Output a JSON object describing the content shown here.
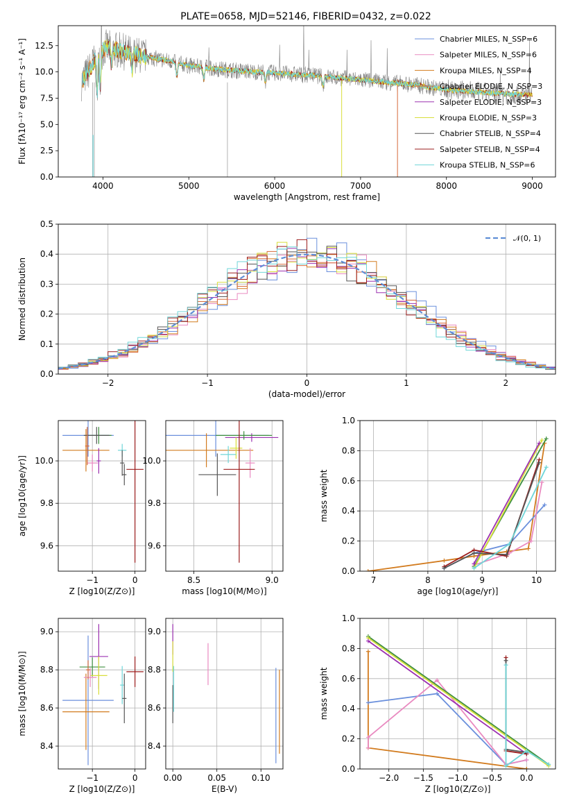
{
  "figure": {
    "title": "PLATE=0658, MJD=52146, FIBERID=0432, z=0.022"
  },
  "colors": {
    "Chabrier MILES": "#6a8fdc",
    "Salpeter MILES": "#e98ac0",
    "Kroupa MILES": "#d27b1e",
    "Chabrier ELODIE": "#d66a3a",
    "Salpeter ELODIE": "#9b30b0",
    "Kroupa ELODIE": "#d8de3a",
    "Chabrier STELIB": "#555555",
    "Salpeter STELIB": "#9b1c1c",
    "Kroupa STELIB": "#6fd6d8",
    "data": "#808080",
    "extra_green": "#3f8f3f"
  },
  "chart_data": [
    {
      "id": "spectrum",
      "type": "line",
      "title": "PLATE=0658, MJD=52146, FIBERID=0432, z=0.022",
      "xlabel": "wavelength [Angstrom, rest frame]",
      "ylabel": "Flux [fλ10⁻¹⁷ erg cm⁻² s⁻¹ A⁻¹]",
      "xlim": [
        3480,
        9270
      ],
      "ylim": [
        0,
        14.4
      ],
      "xticks": [
        "4000",
        "5000",
        "6000",
        "7000",
        "8000",
        "9000"
      ],
      "yticks": [
        "0.0",
        "2.5",
        "5.0",
        "7.5",
        "10.0",
        "12.5"
      ],
      "legend": "upper right",
      "legend_entries": [
        "Chabrier MILES, N_SSP=6",
        "Salpeter MILES, N_SSP=6",
        "Kroupa MILES, N_SSP=4",
        "Chabrier ELODIE, N_SSP=3",
        "Salpeter ELODIE, N_SSP=3",
        "Kroupa ELODIE, N_SSP=3",
        "Chabrier STELIB, N_SSP=4",
        "Salpeter STELIB, N_SSP=4",
        "Kroupa STELIB, N_SSP=6"
      ],
      "continuum": {
        "x": [
          3750,
          3850,
          3950,
          4050,
          4200,
          4400,
          4600,
          4800,
          5000,
          5300,
          5600,
          6000,
          6400,
          6800,
          7200,
          7600,
          8000,
          8500,
          9000
        ],
        "y": [
          10.5,
          11.2,
          12.0,
          12.3,
          12.0,
          11.6,
          11.3,
          11.0,
          10.6,
          10.3,
          10.1,
          9.9,
          9.7,
          9.4,
          9.1,
          8.8,
          8.3,
          8.0,
          7.8
        ]
      }
    },
    {
      "id": "residuals",
      "type": "line",
      "xlabel": "(data-model)/error",
      "ylabel": "Normed distribution",
      "xlim": [
        -2.5,
        2.5
      ],
      "ylim": [
        0,
        0.5
      ],
      "xticks": [
        "−2",
        "−1",
        "0",
        "1",
        "2"
      ],
      "yticks": [
        "0.0",
        "0.1",
        "0.2",
        "0.3",
        "0.4",
        "0.5"
      ],
      "grid": true,
      "legend": "upper right",
      "legend_entries": [
        "𝒩(0, 1)"
      ],
      "bin_width": 0.1
    },
    {
      "id": "age-vs-Z",
      "type": "scatter",
      "xlabel": "Z [log10(Z/Z⊙)]",
      "ylabel": "age  [log10(age/yr)]",
      "xlim": [
        -1.8,
        0.25
      ],
      "ylim": [
        9.48,
        10.19
      ],
      "xticks": [
        "−1",
        "0"
      ],
      "yticks": [
        "9.6",
        "9.8",
        "10.0"
      ],
      "grid": true,
      "points": [
        {
          "model": "Chabrier MILES",
          "x": -1.1,
          "y": 10.12,
          "xerr": 0.6,
          "yerr": 0.1
        },
        {
          "model": "Kroupa MILES",
          "x": -1.15,
          "y": 10.05,
          "xerr": 0.55,
          "yerr": 0.1
        },
        {
          "model": "extra_green",
          "x": -0.85,
          "y": 10.12,
          "xerr": 0.3,
          "yerr": 0.04
        },
        {
          "model": "Chabrier STELIB",
          "x": -0.9,
          "y": 10.12,
          "xerr": 0.3,
          "yerr": 0.04
        },
        {
          "model": "Salpeter MILES",
          "x": -1.0,
          "y": 9.99,
          "xerr": 0.13,
          "yerr": 0.04
        },
        {
          "model": "Salpeter ELODIE",
          "x": -0.85,
          "y": 10.0,
          "xerr": 0.05,
          "yerr": 0.06
        },
        {
          "model": "Chabrier ELODIE",
          "x": -1.12,
          "y": 10.07,
          "xerr": 0.05,
          "yerr": 0.09
        },
        {
          "model": "Kroupa STELIB",
          "x": -0.3,
          "y": 10.05,
          "xerr": 0.1,
          "yerr": 0.03
        },
        {
          "model": "Chabrier STELIB",
          "x": -0.3,
          "y": 9.99,
          "xerr": 0.05,
          "yerr": 0.06
        },
        {
          "model": "Salpeter STELIB",
          "x": 0.0,
          "y": 9.96,
          "xerr": 0.2,
          "yerr": 0.44
        },
        {
          "model": "Chabrier STELIB",
          "x": -0.25,
          "y": 9.935,
          "xerr": 0.05,
          "yerr": 0.05
        }
      ]
    },
    {
      "id": "age-vs-mass",
      "type": "scatter",
      "xlabel": "mass [log10(M/M⊙)]",
      "ylabel": "",
      "xlim": [
        8.32,
        9.07
      ],
      "ylim": [
        9.48,
        10.19
      ],
      "xticks": [
        "8.5",
        "9.0"
      ],
      "yticks": [
        "9.6",
        "9.8",
        "10.0"
      ],
      "grid": true,
      "points": [
        {
          "model": "Chabrier MILES",
          "x": 8.64,
          "y": 10.12,
          "xerr": 0.34,
          "yerr": 0.1
        },
        {
          "model": "Salpeter ELODIE",
          "x": 8.87,
          "y": 10.11,
          "xerr": 0.17,
          "yerr": 0.02
        },
        {
          "model": "extra_green",
          "x": 8.82,
          "y": 10.12,
          "xerr": 0.18,
          "yerr": 0.02
        },
        {
          "model": "Kroupa MILES",
          "x": 8.58,
          "y": 10.05,
          "xerr": 0.3,
          "yerr": 0.08
        },
        {
          "model": "Kroupa ELODIE",
          "x": 8.77,
          "y": 10.06,
          "xerr": 0.04,
          "yerr": 0.05
        },
        {
          "model": "Salpeter MILES",
          "x": 8.86,
          "y": 9.99,
          "xerr": 0.03,
          "yerr": 0.07
        },
        {
          "model": "Chabrier STELIB",
          "x": 8.65,
          "y": 9.935,
          "xerr": 0.12,
          "yerr": 0.1
        },
        {
          "model": "Salpeter STELIB",
          "x": 8.79,
          "y": 9.96,
          "xerr": 0.1,
          "yerr": 0.44
        },
        {
          "model": "Kroupa STELIB",
          "x": 8.72,
          "y": 10.03,
          "xerr": 0.05,
          "yerr": 0.04
        }
      ]
    },
    {
      "id": "massweight-vs-age",
      "type": "line",
      "xlabel": "age  [log10(age/yr)]",
      "ylabel": "mass weight",
      "xlim": [
        6.75,
        10.35
      ],
      "ylim": [
        0,
        1.0
      ],
      "xticks": [
        "7",
        "8",
        "9",
        "10"
      ],
      "yticks": [
        "0.0",
        "0.2",
        "0.4",
        "0.6",
        "0.8",
        "1.0"
      ],
      "grid": true,
      "series": [
        {
          "model": "Kroupa MILES",
          "x": [
            6.9,
            8.3,
            8.85,
            9.45,
            9.85,
            10.15
          ],
          "y": [
            0.0,
            0.07,
            0.1,
            0.13,
            0.15,
            0.85
          ]
        },
        {
          "model": "Chabrier MILES",
          "x": [
            8.3,
            8.85,
            9.5,
            10.15
          ],
          "y": [
            0.02,
            0.12,
            0.18,
            0.44
          ]
        },
        {
          "model": "Salpeter MILES",
          "x": [
            8.85,
            9.5,
            9.9,
            10.1
          ],
          "y": [
            0.04,
            0.12,
            0.2,
            0.59
          ]
        },
        {
          "model": "extra_green",
          "x": [
            8.85,
            10.18
          ],
          "y": [
            0.03,
            0.88
          ]
        },
        {
          "model": "Kroupa ELODIE",
          "x": [
            8.85,
            10.1
          ],
          "y": [
            0.02,
            0.87
          ]
        },
        {
          "model": "Salpeter ELODIE",
          "x": [
            8.85,
            10.05
          ],
          "y": [
            0.05,
            0.85
          ]
        },
        {
          "model": "Salpeter STELIB",
          "x": [
            8.3,
            8.85,
            9.45,
            10.05
          ],
          "y": [
            0.03,
            0.14,
            0.1,
            0.74
          ]
        },
        {
          "model": "Chabrier STELIB",
          "x": [
            8.3,
            8.85,
            9.45,
            10.05
          ],
          "y": [
            0.02,
            0.12,
            0.11,
            0.72
          ]
        },
        {
          "model": "Kroupa STELIB",
          "x": [
            8.85,
            9.5,
            10.18
          ],
          "y": [
            0.02,
            0.18,
            0.69
          ]
        }
      ]
    },
    {
      "id": "mass-vs-Z",
      "type": "scatter",
      "xlabel": "Z [log10(Z/Z⊙)]",
      "ylabel": "mass [log10(M/M⊙)]",
      "xlim": [
        -1.8,
        0.25
      ],
      "ylim": [
        8.28,
        9.07
      ],
      "xticks": [
        "−1",
        "0"
      ],
      "yticks": [
        "8.4",
        "8.6",
        "8.8",
        "9.0"
      ],
      "grid": true,
      "points": [
        {
          "model": "Chabrier MILES",
          "x": -1.1,
          "y": 8.64,
          "xerr": 0.6,
          "yerr": 0.34
        },
        {
          "model": "Kroupa MILES",
          "x": -1.15,
          "y": 8.58,
          "xerr": 0.55,
          "yerr": 0.2
        },
        {
          "model": "Salpeter ELODIE",
          "x": -0.85,
          "y": 8.87,
          "xerr": 0.22,
          "yerr": 0.17
        },
        {
          "model": "extra_green",
          "x": -1.0,
          "y": 8.815,
          "xerr": 0.3,
          "yerr": 0.05
        },
        {
          "model": "Kroupa ELODIE",
          "x": -0.85,
          "y": 8.77,
          "xerr": 0.2,
          "yerr": 0.1
        },
        {
          "model": "Salpeter MILES",
          "x": -1.05,
          "y": 8.76,
          "xerr": 0.15,
          "yerr": 0.05
        },
        {
          "model": "Chabrier ELODIE",
          "x": -1.1,
          "y": 8.8,
          "xerr": 0.05,
          "yerr": 0.05
        },
        {
          "model": "Kroupa STELIB",
          "x": -0.3,
          "y": 8.72,
          "xerr": 0.05,
          "yerr": 0.1
        },
        {
          "model": "Chabrier STELIB",
          "x": -0.25,
          "y": 8.65,
          "xerr": 0.05,
          "yerr": 0.13
        },
        {
          "model": "Salpeter STELIB",
          "x": 0.0,
          "y": 8.79,
          "xerr": 0.2,
          "yerr": 0.08
        }
      ]
    },
    {
      "id": "mass-vs-EBV",
      "type": "scatter",
      "xlabel": "E(B-V)",
      "ylabel": "",
      "xlim": [
        -0.008,
        0.125
      ],
      "ylim": [
        8.28,
        9.07
      ],
      "xticks": [
        "0.00",
        "0.05",
        "0.10"
      ],
      "yticks": [
        "8.4",
        "8.6",
        "8.8",
        "9.0"
      ],
      "grid": true,
      "points": [
        {
          "model": "Salpeter ELODIE",
          "x": 0.0,
          "y": 8.96,
          "xerr": 0,
          "yerr": 0.08
        },
        {
          "model": "Kroupa ELODIE",
          "x": 0.0,
          "y": 8.87,
          "xerr": 0,
          "yerr": 0.08
        },
        {
          "model": "Chabrier STELIB",
          "x": 0.0,
          "y": 8.62,
          "xerr": 0,
          "yerr": 0.1
        },
        {
          "model": "Kroupa STELIB",
          "x": 0.001,
          "y": 8.7,
          "xerr": 0,
          "yerr": 0.12
        },
        {
          "model": "Salpeter MILES",
          "x": 0.04,
          "y": 8.83,
          "xerr": 0,
          "yerr": 0.11
        },
        {
          "model": "Chabrier MILES",
          "x": 0.117,
          "y": 8.56,
          "xerr": 0,
          "yerr": 0.25
        },
        {
          "model": "Kroupa MILES",
          "x": 0.121,
          "y": 8.58,
          "xerr": 0,
          "yerr": 0.22
        }
      ]
    },
    {
      "id": "massweight-vs-Z",
      "type": "line",
      "xlabel": "Z [log10(Z/Z⊙)]",
      "ylabel": "mass weight",
      "xlim": [
        -2.42,
        0.42
      ],
      "ylim": [
        0,
        1.0
      ],
      "xticks": [
        "−2.0",
        "−1.5",
        "−1.0",
        "−0.5",
        "0.0"
      ],
      "yticks": [
        "0.0",
        "0.2",
        "0.4",
        "0.6",
        "0.8",
        "1.0"
      ],
      "grid": true,
      "series": [
        {
          "model": "Kroupa MILES",
          "x": [
            -2.3,
            -2.3,
            0.0,
            0.0
          ],
          "y": [
            0.78,
            0.14,
            0.0,
            0.0
          ]
        },
        {
          "model": "Chabrier MILES",
          "x": [
            -2.3,
            -1.3,
            -0.3,
            0.0
          ],
          "y": [
            0.44,
            0.5,
            0.03,
            0.06
          ]
        },
        {
          "model": "Salpeter MILES",
          "x": [
            -2.3,
            -2.3,
            -1.3,
            -0.3,
            0.0
          ],
          "y": [
            0.14,
            0.21,
            0.59,
            0.03,
            0.06
          ]
        },
        {
          "model": "extra_green",
          "x": [
            -2.3,
            0.32
          ],
          "y": [
            0.88,
            0.03
          ]
        },
        {
          "model": "Kroupa ELODIE",
          "x": [
            -2.3,
            0.32
          ],
          "y": [
            0.87,
            0.02
          ]
        },
        {
          "model": "Salpeter ELODIE",
          "x": [
            -2.3,
            0.0
          ],
          "y": [
            0.85,
            0.1
          ]
        },
        {
          "model": "Salpeter STELIB",
          "x": [
            -0.3,
            -0.3,
            0.0
          ],
          "y": [
            0.74,
            0.12,
            0.1
          ]
        },
        {
          "model": "Chabrier STELIB",
          "x": [
            -0.3,
            -0.3,
            0.0
          ],
          "y": [
            0.72,
            0.13,
            0.11
          ]
        },
        {
          "model": "Kroupa STELIB",
          "x": [
            -0.3,
            -0.3,
            0.0,
            0.32
          ],
          "y": [
            0.69,
            0.02,
            0.12,
            0.03
          ]
        }
      ]
    }
  ]
}
